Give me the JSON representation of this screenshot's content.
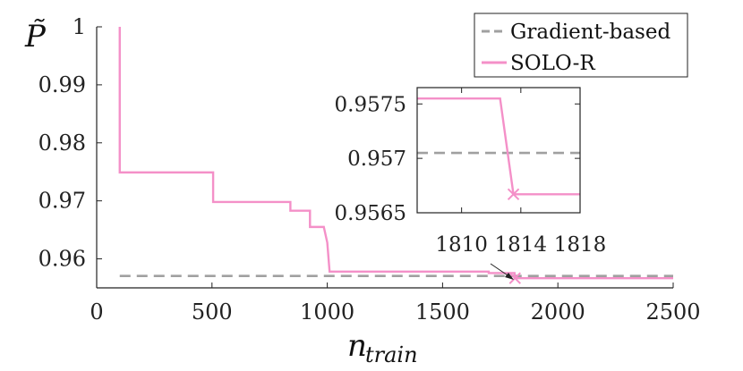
{
  "chart_data": [
    {
      "type": "line",
      "ylabel": "P̃",
      "xlabel": {
        "base": "n",
        "sub": "train"
      },
      "xlim": [
        0,
        2500
      ],
      "ylim": [
        0.955,
        1.0
      ],
      "xticks": [
        0,
        500,
        1000,
        1500,
        2000,
        2500
      ],
      "xtick_labels": [
        "0",
        "500",
        "1000",
        "1500",
        "2000",
        "2500"
      ],
      "yticks": [
        0.96,
        0.97,
        0.98,
        0.99,
        1.0
      ],
      "ytick_labels": [
        "0.96",
        "0.97",
        "0.98",
        "0.99",
        "1"
      ],
      "grid": false,
      "legend_position": "top-right",
      "series": [
        {
          "name": "Gradient-based",
          "style": "dashed",
          "color": "#a0a0a0",
          "x": [
            100,
            2500
          ],
          "y": [
            0.95705,
            0.95705
          ]
        },
        {
          "name": "SOLO-R",
          "style": "solid",
          "color": "#f490c8",
          "x": [
            100,
            100,
            505,
            505,
            840,
            840,
            925,
            925,
            985,
            1000,
            1000,
            1010,
            1010,
            1700,
            1700,
            1812,
            1814,
            1814,
            2500
          ],
          "y": [
            1.0,
            0.9749,
            0.9749,
            0.9698,
            0.9698,
            0.9683,
            0.9683,
            0.9655,
            0.9655,
            0.9628,
            0.9628,
            0.9578,
            0.9578,
            0.9578,
            0.95755,
            0.95755,
            0.95667,
            0.95667,
            0.95667
          ]
        }
      ],
      "annotations": [
        {
          "type": "marker",
          "symbol": "x",
          "x": 1814,
          "y": 0.95667,
          "series": "SOLO-R"
        }
      ]
    },
    {
      "type": "line",
      "role": "inset",
      "xlim": [
        1807,
        1818
      ],
      "ylim": [
        0.9565,
        0.95765
      ],
      "xticks": [
        1810,
        1814,
        1818
      ],
      "xtick_labels": [
        "1810",
        "1814",
        "1818"
      ],
      "yticks": [
        0.9565,
        0.957,
        0.9575
      ],
      "ytick_labels": [
        "0.9565",
        "0.957",
        "0.9575"
      ],
      "grid": false,
      "series": [
        {
          "name": "Gradient-based",
          "style": "dashed",
          "color": "#a0a0a0",
          "x": [
            1807,
            1818
          ],
          "y": [
            0.95705,
            0.95705
          ]
        },
        {
          "name": "SOLO-R",
          "style": "solid",
          "color": "#f490c8",
          "x": [
            1807,
            1812.6,
            1813.5,
            1818
          ],
          "y": [
            0.95755,
            0.95755,
            0.95667,
            0.95667
          ]
        }
      ],
      "annotations": [
        {
          "type": "marker",
          "symbol": "x",
          "x": 1813.5,
          "y": 0.95667,
          "series": "SOLO-R"
        }
      ]
    }
  ]
}
